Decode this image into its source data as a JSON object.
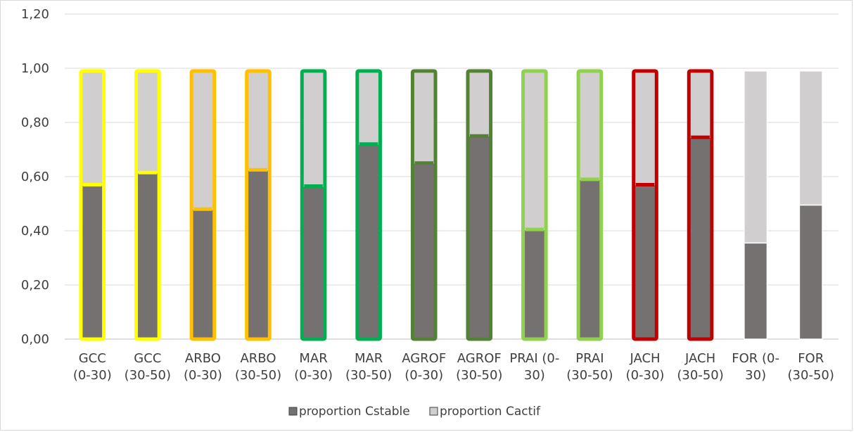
{
  "chart_data": {
    "type": "bar",
    "stacked": true,
    "categories": [
      [
        "GCC",
        "(0-30)"
      ],
      [
        "GCC",
        "(30-50)"
      ],
      [
        "ARBO",
        "(0-30)"
      ],
      [
        "ARBO",
        "(30-50)"
      ],
      [
        "MAR",
        "(0-30)"
      ],
      [
        "MAR",
        "(30-50)"
      ],
      [
        "AGROF",
        "(0-30)"
      ],
      [
        "AGROF",
        "(30-50)"
      ],
      [
        "PRAI (0-",
        "30)"
      ],
      [
        "PRAI",
        "(30-50)"
      ],
      [
        "JACH",
        "(0-30)"
      ],
      [
        "JACH",
        "(30-50)"
      ],
      [
        "FOR (0-",
        "30)"
      ],
      [
        "FOR",
        "(30-50)"
      ]
    ],
    "series": [
      {
        "name": "proportion Cstable",
        "color": "#767171",
        "values": [
          0.57,
          0.615,
          0.48,
          0.625,
          0.565,
          0.72,
          0.65,
          0.75,
          0.405,
          0.59,
          0.57,
          0.745,
          0.355,
          0.495
        ]
      },
      {
        "name": "proportion Cactif",
        "color": "#d0cece",
        "values": [
          0.42,
          0.375,
          0.51,
          0.365,
          0.425,
          0.27,
          0.34,
          0.24,
          0.585,
          0.4,
          0.42,
          0.245,
          0.635,
          0.495
        ]
      }
    ],
    "outline_colors": [
      "#ffff00",
      "#ffff00",
      "#ffc000",
      "#ffc000",
      "#00b050",
      "#00b050",
      "#548235",
      "#548235",
      "#92d050",
      "#92d050",
      "#c00000",
      "#c00000",
      "",
      ""
    ],
    "ylim": [
      0,
      1.2
    ],
    "yticks": [
      "0,00",
      "0,20",
      "0,40",
      "0,60",
      "0,80",
      "1,00",
      "1,20"
    ],
    "grid": true,
    "legend_position": "bottom"
  }
}
